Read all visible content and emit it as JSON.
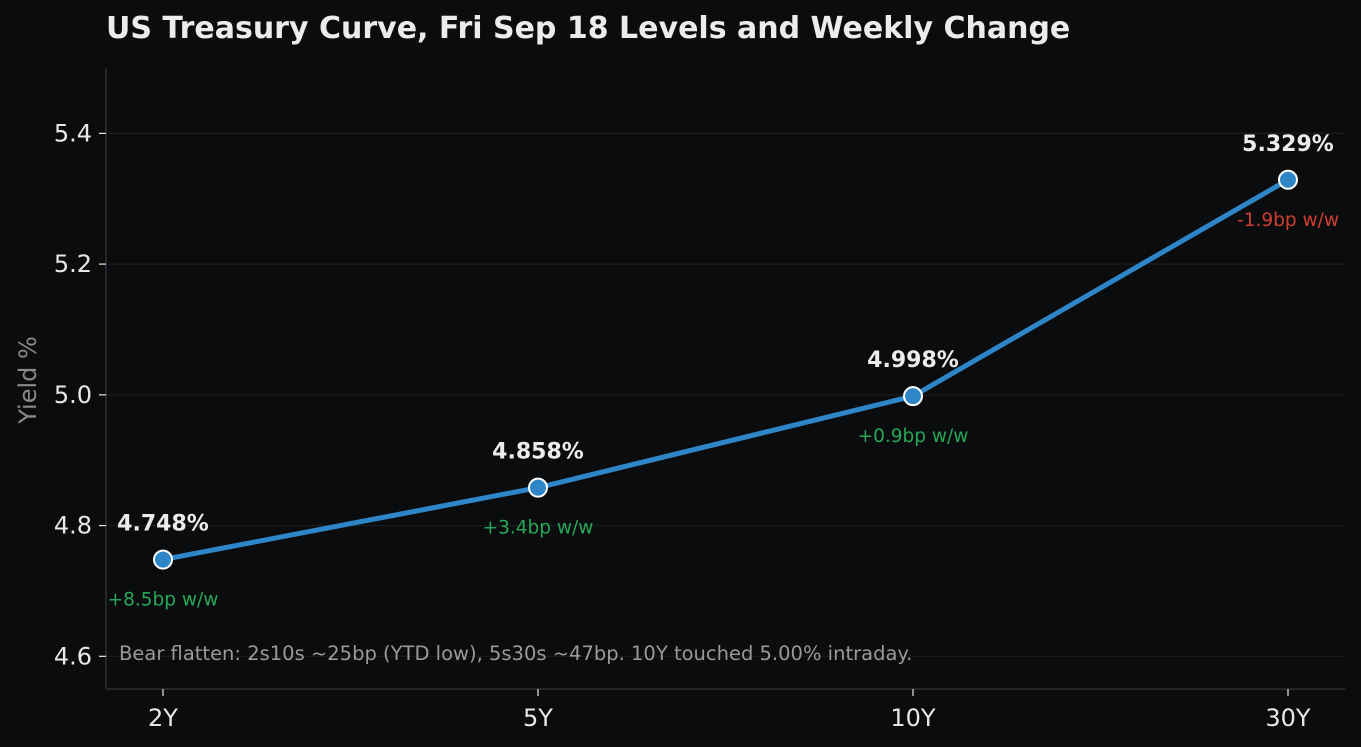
{
  "chart_data": {
    "type": "line",
    "title": "US Treasury Curve, Fri Sep 18 Levels and Weekly Change",
    "xlabel": "",
    "ylabel": "Yield %",
    "categories": [
      "2Y",
      "5Y",
      "10Y",
      "30Y"
    ],
    "series": [
      {
        "values": [
          4.748,
          4.858,
          4.998,
          5.329
        ],
        "value_labels": [
          "4.748%",
          "4.858%",
          "4.998%",
          "5.329%"
        ],
        "weekly_change_labels": [
          "+8.5bp w/w",
          "+3.4bp w/w",
          "+0.9bp w/w",
          "-1.9bp w/w"
        ],
        "weekly_change_direction": [
          "up",
          "up",
          "up",
          "down"
        ]
      }
    ],
    "ylim": [
      4.55,
      5.5
    ],
    "yticks": [
      4.6,
      4.8,
      5.0,
      5.2,
      5.4
    ],
    "ytick_labels": [
      "4.6",
      "4.8",
      "5.0",
      "5.2",
      "5.4"
    ],
    "grid": "horizontal",
    "annotation": "Bear flatten: 2s10s ~25bp (YTD low), 5s30s ~47bp. 10Y touched 5.00% intraday."
  },
  "colors": {
    "background": "#0b0c0e",
    "line": "#2e86c8",
    "marker_fill": "#2e86c8",
    "marker_stroke": "#ffffff",
    "title": "#ececec",
    "tick_text": "#e8e8e8",
    "ylabel": "#8a8a8a",
    "value_label": "#ececec",
    "positive_change": "#27a859",
    "negative_change": "#cf3e33",
    "annotation": "#9a9a9a",
    "grid": "#1c1d20",
    "axis": "#2e2f33"
  }
}
